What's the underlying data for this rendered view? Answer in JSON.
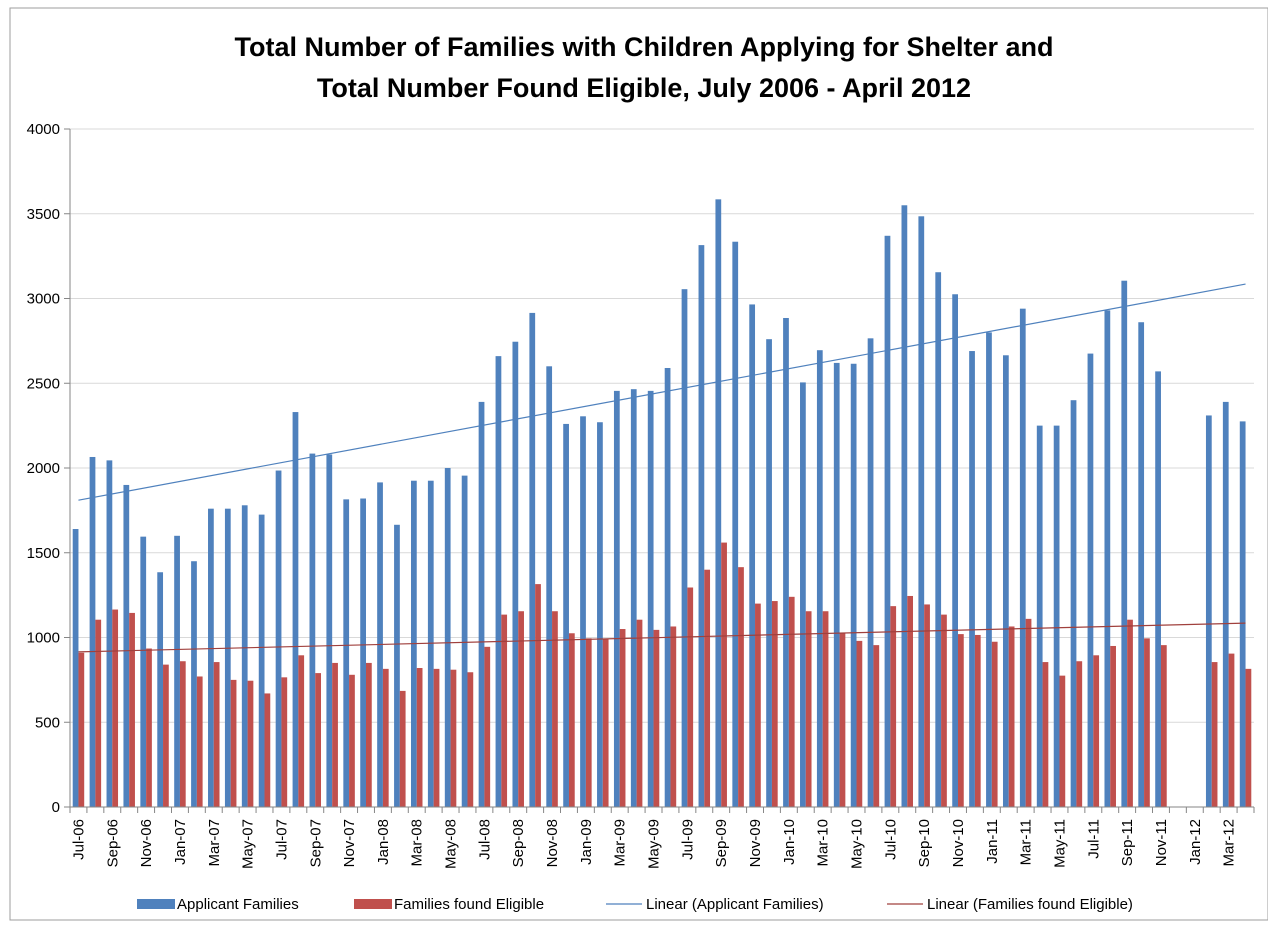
{
  "chart_data": {
    "type": "bar",
    "title": [
      "Total Number of Families with Children Applying for Shelter and",
      "Total Number Found Eligible, July 2006 - April 2012"
    ],
    "xlabel": "",
    "ylabel": "",
    "ylim": [
      0,
      4000
    ],
    "yticks": [
      0,
      500,
      1000,
      1500,
      2000,
      2500,
      3000,
      3500,
      4000
    ],
    "grid": true,
    "legend_position": "bottom",
    "categories": [
      "Jul-06",
      "Aug-06",
      "Sep-06",
      "Oct-06",
      "Nov-06",
      "Dec-06",
      "Jan-07",
      "Feb-07",
      "Mar-07",
      "Apr-07",
      "May-07",
      "Jun-07",
      "Jul-07",
      "Aug-07",
      "Sep-07",
      "Oct-07",
      "Nov-07",
      "Dec-07",
      "Jan-08",
      "Feb-08",
      "Mar-08",
      "Apr-08",
      "May-08",
      "Jun-08",
      "Jul-08",
      "Aug-08",
      "Sep-08",
      "Oct-08",
      "Nov-08",
      "Dec-08",
      "Jan-09",
      "Feb-09",
      "Mar-09",
      "Apr-09",
      "May-09",
      "Jun-09",
      "Jul-09",
      "Aug-09",
      "Sep-09",
      "Oct-09",
      "Nov-09",
      "Dec-09",
      "Jan-10",
      "Feb-10",
      "Mar-10",
      "Apr-10",
      "May-10",
      "Jun-10",
      "Jul-10",
      "Aug-10",
      "Sep-10",
      "Oct-10",
      "Nov-10",
      "Dec-10",
      "Jan-11",
      "Feb-11",
      "Mar-11",
      "Apr-11",
      "May-11",
      "Jun-11",
      "Jul-11",
      "Aug-11",
      "Sep-11",
      "Oct-11",
      "Nov-11",
      "Dec-11",
      "Jan-12",
      "Feb-12",
      "Mar-12",
      "Apr-12"
    ],
    "tick_labels": [
      "Jul-06",
      "Sep-06",
      "Nov-06",
      "Jan-07",
      "Mar-07",
      "May-07",
      "Jul-07",
      "Sep-07",
      "Nov-07",
      "Jan-08",
      "Mar-08",
      "May-08",
      "Jul-08",
      "Sep-08",
      "Nov-08",
      "Jan-09",
      "Mar-09",
      "May-09",
      "Jul-09",
      "Sep-09",
      "Nov-09",
      "Jan-10",
      "Mar-10",
      "May-10",
      "Jul-10",
      "Sep-10",
      "Nov-10",
      "Jan-11",
      "Mar-11",
      "May-11",
      "Jul-11",
      "Sep-11",
      "Nov-11",
      "Jan-12",
      "Mar-12"
    ],
    "series": [
      {
        "name": "Applicant Families",
        "color": "#4f81bd",
        "values": [
          1640,
          2065,
          2045,
          1900,
          1595,
          1385,
          1600,
          1450,
          1760,
          1760,
          1780,
          1725,
          1985,
          2330,
          2085,
          2080,
          1815,
          1820,
          1915,
          1665,
          1925,
          1925,
          2000,
          1955,
          2390,
          2660,
          2745,
          2915,
          2600,
          2260,
          2305,
          2270,
          2455,
          2465,
          2455,
          2590,
          3055,
          3315,
          3585,
          3335,
          2965,
          2760,
          2885,
          2505,
          2695,
          2620,
          2615,
          2765,
          3370,
          3550,
          3485,
          3155,
          3025,
          2690,
          2800,
          2665,
          2940,
          2250,
          2250,
          2400,
          2675,
          2930,
          3105,
          2860,
          2570,
          null,
          null,
          2310,
          2390,
          2275
        ]
      },
      {
        "name": "Families found Eligible",
        "color": "#c0504d",
        "values": [
          910,
          1105,
          1165,
          1145,
          935,
          840,
          860,
          770,
          855,
          750,
          745,
          670,
          765,
          895,
          790,
          850,
          780,
          850,
          815,
          685,
          820,
          815,
          810,
          795,
          945,
          1135,
          1155,
          1315,
          1155,
          1025,
          995,
          990,
          1050,
          1105,
          1045,
          1065,
          1295,
          1400,
          1560,
          1415,
          1200,
          1215,
          1240,
          1155,
          1155,
          1025,
          980,
          955,
          1185,
          1245,
          1195,
          1135,
          1020,
          1015,
          975,
          1065,
          1110,
          855,
          775,
          860,
          895,
          950,
          1105,
          995,
          955,
          null,
          null,
          855,
          905,
          815
        ]
      }
    ],
    "trendlines": [
      {
        "name": "Linear (Applicant Families)",
        "color": "#4f81bd",
        "start": 1810,
        "end": 3085
      },
      {
        "name": "Linear (Families found Eligible)",
        "color": "#a0403d",
        "start": 915,
        "end": 1085
      }
    ]
  }
}
